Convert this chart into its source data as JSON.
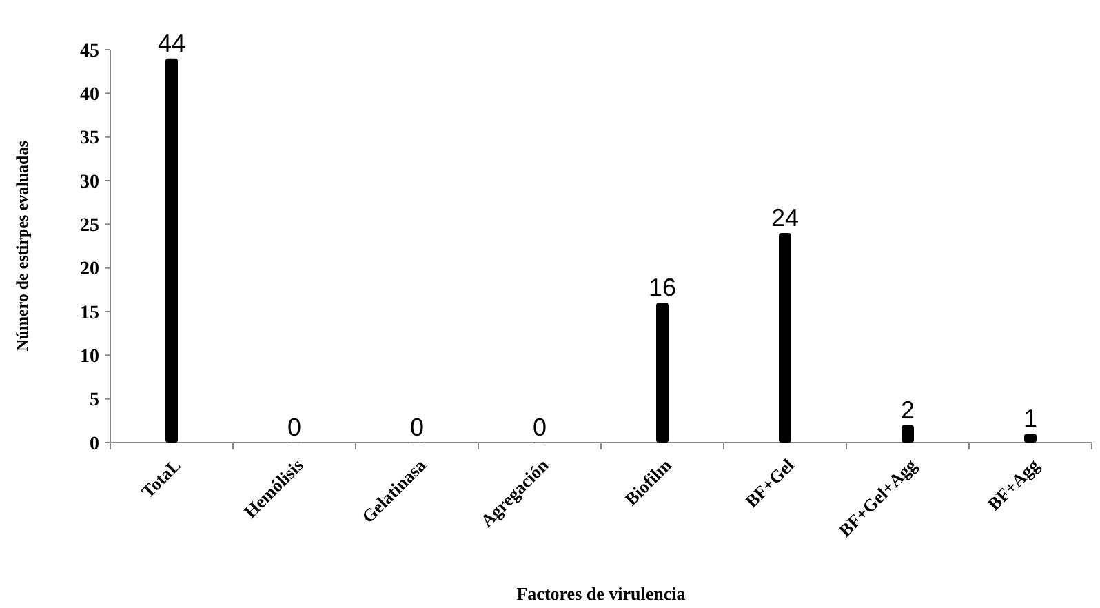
{
  "chart_data": {
    "type": "bar",
    "xlabel": "Factores de virulencia",
    "ylabel": "Número de estirpes evaluadas",
    "categories": [
      "TotaL",
      "Hemólisis",
      "Gelatinasa",
      "Agregación",
      "Biofilm",
      "BF+Gel",
      "BF+Gel+Agg",
      "BF+Agg"
    ],
    "values": [
      44,
      0,
      0,
      0,
      16,
      24,
      2,
      1
    ],
    "color": "#000000",
    "ylim": [
      0,
      45
    ],
    "yticks": [
      0,
      5,
      10,
      15,
      20,
      25,
      30,
      35,
      40,
      45
    ],
    "data_labels": true,
    "grid": false
  }
}
